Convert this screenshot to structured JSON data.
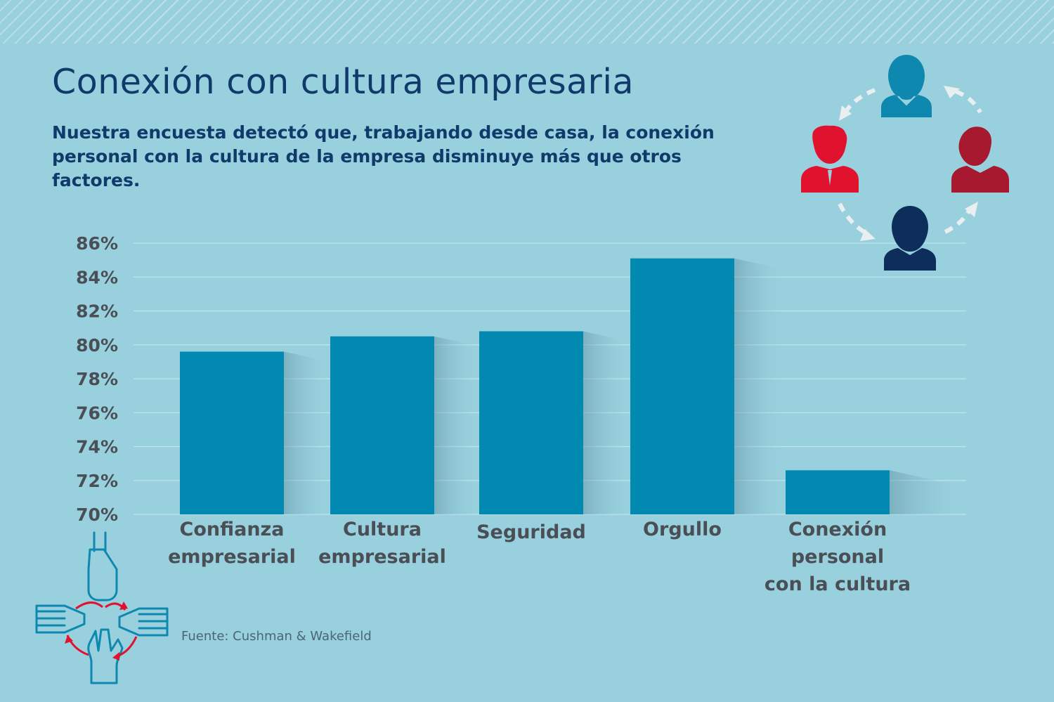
{
  "title": "Conexión con cultura empresaria",
  "subtitle": "Nuestra encuesta detectó que, trabajando desde casa, la conexión personal con la cultura de la empresa disminuye más que otros factores.",
  "source": "Fuente: Cushman & Wakefield",
  "colors": {
    "background": "#98d0de",
    "bar": "#0289b2",
    "text_dark_blue": "#0f3a6a",
    "axis_text": "#4a4f55",
    "person_red": "#e1122d",
    "person_dark_red": "#a6192e",
    "person_teal": "#0f88b0",
    "person_navy": "#0d2d5b",
    "hands_outline": "#0f88b0"
  },
  "icons": [
    "people-cycle-icon",
    "hands-together-icon"
  ],
  "chart_data": {
    "type": "bar",
    "title": "",
    "xlabel": "",
    "ylabel": "",
    "ylim": [
      70,
      86
    ],
    "yticks": [
      "86%",
      "84%",
      "82%",
      "80%",
      "78%",
      "76%",
      "74%",
      "72%",
      "70%"
    ],
    "categories": [
      [
        "Confianza",
        "empresarial"
      ],
      [
        "Cultura",
        "empresarial"
      ],
      [
        "Seguridad"
      ],
      [
        "Orgullo"
      ],
      [
        "Conexión",
        "personal",
        "con la cultura"
      ]
    ],
    "values": [
      79.6,
      80.5,
      80.8,
      85.1,
      72.6
    ],
    "grid": true,
    "legend": "none"
  }
}
